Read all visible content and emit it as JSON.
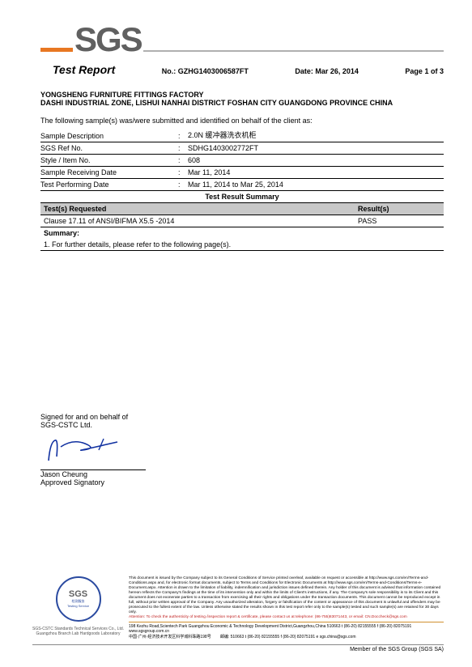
{
  "logo_text": "SGS",
  "colors": {
    "orange": "#e87722",
    "gray_logo": "#606060",
    "gray_bar": "#b0b0b0",
    "result_header_bg": "#c8c8c8",
    "seal_blue": "#2a4aa0",
    "red_text": "#c02020"
  },
  "header": {
    "title": "Test Report",
    "no_label": "No.:",
    "no_value": "GZHG1403006587FT",
    "date_label": "Date:",
    "date_value": "Mar 26, 2014",
    "page_label": "Page",
    "page_value": "1 of  3"
  },
  "company": {
    "name": "YONGSHENG FURNITURE FITTINGS FACTORY",
    "address": "DASHI INDUSTRIAL ZONE, LISHUI NANHAI DISTRICT FOSHAN CITY GUANGDONG  PROVINCE CHINA"
  },
  "intro_text": "The following sample(s) was/were submitted and identified on behalf of the client as:",
  "fields": [
    {
      "label": "Sample Description",
      "value": "2.0N 缓冲器洗衣机柜"
    },
    {
      "label": "SGS Ref No.",
      "value": "SDHG1403002772FT"
    },
    {
      "label": "Style / Item No.",
      "value": "608"
    },
    {
      "label": "Sample Receiving Date",
      "value": "Mar 11, 2014"
    },
    {
      "label": "Test Performing Date",
      "value": "Mar 11, 2014 to Mar 25, 2014"
    }
  ],
  "result_summary_title": "Test Result Summary",
  "result_headers": {
    "tests": "Test(s) Requested",
    "result": "Result(s)"
  },
  "result_rows": [
    {
      "test": "Clause 17.11 of ANSI/BIFMA X5.5 -2014",
      "result": "PASS"
    }
  ],
  "summary_label": "Summary:",
  "summary_detail": "1.  For further details, please refer to the following page(s).",
  "signature": {
    "signed_for": "Signed for and on behalf of",
    "company": "SGS-CSTC Ltd.",
    "name": "Jason Cheung",
    "title": "Approved Signatory"
  },
  "footer": {
    "seal_text": "SGS",
    "seal_cn_top": "检测服务",
    "seal_cn_bottom": "Testing Service",
    "disclaimer": "This document is issued by the Company subject to its General Conditions of Service printed overleaf, available on request or accessible at http://www.sgs.com/en/Terms-and-Conditions.aspx and, for electronic format documents, subject to Terms and Conditions for Electronic Documents at http://www.sgs.com/en/Terms-and-Conditions/Terms-e-Document.aspx. Attention is drawn to the limitation of liability, indemnification and jurisdiction issues defined therein. Any holder of this document is advised that information contained hereon reflects the Company's findings at the time of its intervention only and within the limits of Client's instructions, if any. The Company's sole responsibility is to its Client and this document does not exonerate parties to a transaction from exercising all their rights and obligations under the transaction documents. This document cannot be reproduced except in full, without prior written approval of the Company. Any unauthorized alteration, forgery or falsification of the content or appearance of this document is unlawful and offenders may be prosecuted to the fullest extent of the law. Unless otherwise stated the results shown in this test report refer only to the sample(s) tested and such sample(s) are retained for 30 days only.",
    "attention": "Attention: To check the authenticity of testing /inspection report & certificate, please contact us at telephone: (86-755)83071443, or email: CN.Doccheck@sgs.com",
    "address_en": "198 Kezhu Road,Scientech Park Guangzhou Economic & Technology Development District,Guangzhou,China 510663  t (86-20) 82155555  f (86-20) 82075191  www.sgsgroup.com.cn",
    "address_cn": "中国·广州·经济技术开发区科学城科珠路198号",
    "postal": "邮编: 510663  t (86-20) 82155555  f (86-20) 82075191  e sgs.china@sgs.com",
    "company_left1": "SGS-CSTC Standards Technical Services Co., Ltd.",
    "company_left2": "Guangzhou Branch Lab Hardgoods Laboratory",
    "member": "Member of the SGS Group (SGS SA)"
  }
}
